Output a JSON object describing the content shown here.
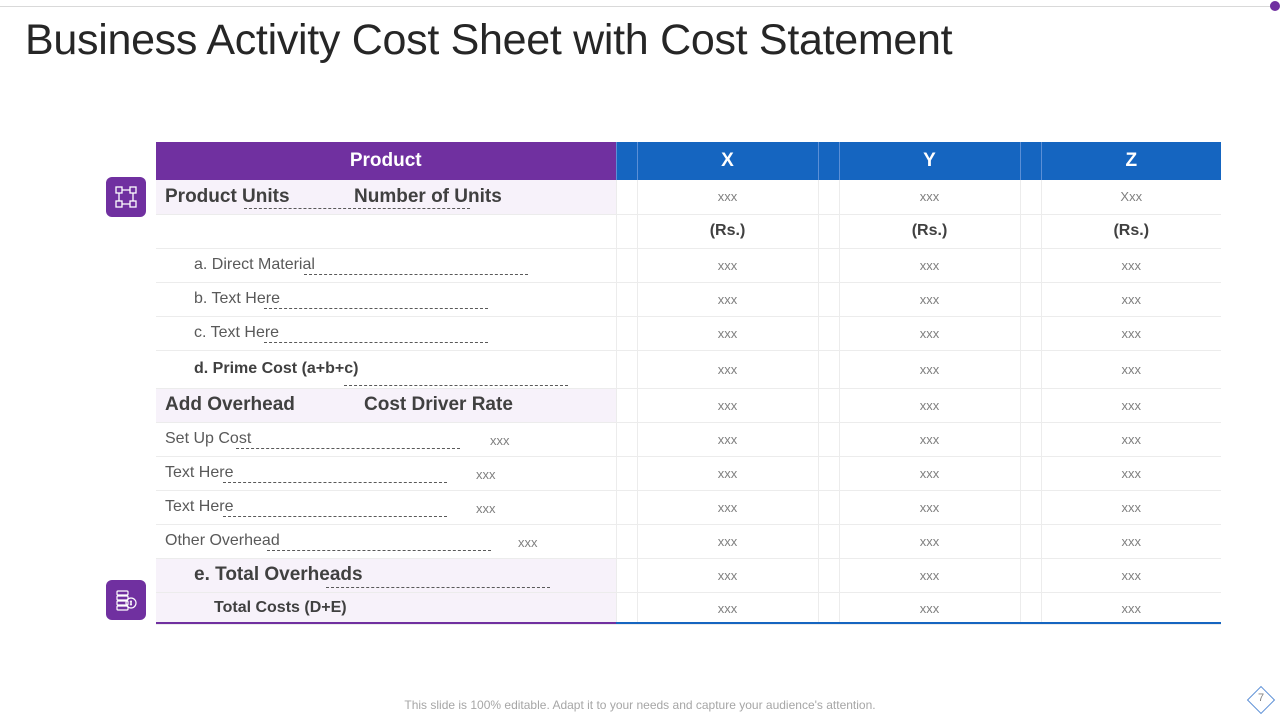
{
  "title": "Business Activity Cost Sheet with Cost Statement",
  "table": {
    "headers": {
      "product": "Product",
      "x": "X",
      "y": "Y",
      "z": "Z"
    },
    "rows": [
      {
        "label": "Product Units",
        "label2": "Number of Units",
        "x": "xxx",
        "y": "xxx",
        "z": "Xxx"
      },
      {
        "label": "",
        "x": "(Rs.)",
        "y": "(Rs.)",
        "z": "(Rs.)"
      },
      {
        "label": "a. Direct Material",
        "x": "xxx",
        "y": "xxx",
        "z": "xxx"
      },
      {
        "label": "b. Text Here",
        "x": "xxx",
        "y": "xxx",
        "z": "xxx"
      },
      {
        "label": "c. Text Here",
        "x": "xxx",
        "y": "xxx",
        "z": "xxx"
      },
      {
        "label": "d. Prime Cost (a+b+c)",
        "x": "xxx",
        "y": "xxx",
        "z": "xxx"
      },
      {
        "label": "Add Overhead",
        "label2": "Cost Driver Rate",
        "x": "xxx",
        "y": "xxx",
        "z": "xxx"
      },
      {
        "label": "Set Up Cost",
        "rate": "xxx",
        "x": "xxx",
        "y": "xxx",
        "z": "xxx"
      },
      {
        "label": "Text Here",
        "rate": "xxx",
        "x": "xxx",
        "y": "xxx",
        "z": "xxx"
      },
      {
        "label": "Text Here",
        "rate": "xxx",
        "x": "xxx",
        "y": "xxx",
        "z": "xxx"
      },
      {
        "label": "Other Overhead",
        "rate": "xxx",
        "x": "xxx",
        "y": "xxx",
        "z": "xxx"
      },
      {
        "label": "e. Total Overheads",
        "x": "xxx",
        "y": "xxx",
        "z": "xxx"
      },
      {
        "label": "Total Costs (D+E)",
        "x": "xxx",
        "y": "xxx",
        "z": "xxx"
      }
    ]
  },
  "icons": {
    "top": "flowchart-icon",
    "bottom": "money-stack-icon"
  },
  "colors": {
    "purple": "#7030a0",
    "blue": "#1565c0"
  },
  "footer": "This slide is 100% editable. Adapt it to your needs and capture your audience's attention.",
  "page_number": "7"
}
